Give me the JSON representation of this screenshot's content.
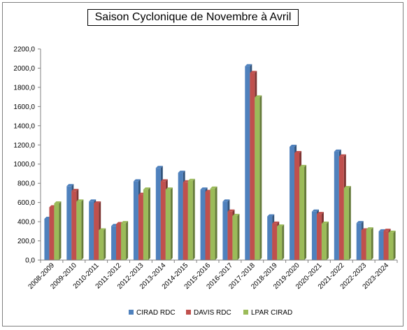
{
  "chart_data": {
    "type": "bar",
    "title": "Saison Cyclonique de Novembre à Avril",
    "xlabel": "",
    "ylabel": "",
    "ylim": [
      0,
      2200
    ],
    "yticks": [
      "0,0",
      "200,0",
      "400,0",
      "600,0",
      "800,0",
      "1000,0",
      "1200,0",
      "1400,0",
      "1600,0",
      "1800,0",
      "2000,0",
      "2200,0"
    ],
    "grid": false,
    "legend_position": "bottom",
    "categories": [
      "2008-2009",
      "2009-2010",
      "2010-2011",
      "2011-2012",
      "2012-2013",
      "2013-2014",
      "2014-2015",
      "2015-2016",
      "2016-2017",
      "2017-2018",
      "2018-2019",
      "2019-2020",
      "2020-2021",
      "2021-2022",
      "2022-2023",
      "2023-2024"
    ],
    "series": [
      {
        "name": "CIRAD RDC",
        "color": "#4f81bd",
        "values": [
          430,
          770,
          610,
          355,
          820,
          960,
          910,
          735,
          610,
          2020,
          455,
          1180,
          505,
          1130,
          385,
          300
        ]
      },
      {
        "name": "DAVIS RDC",
        "color": "#c0504d",
        "values": [
          550,
          720,
          590,
          375,
          680,
          820,
          810,
          710,
          505,
          1950,
          380,
          1115,
          480,
          1080,
          310,
          305
        ]
      },
      {
        "name": "LPAR CIRAD",
        "color": "#9bbb59",
        "values": [
          590,
          610,
          310,
          385,
          735,
          735,
          825,
          745,
          460,
          1695,
          350,
          970,
          380,
          750,
          320,
          285
        ]
      }
    ]
  }
}
